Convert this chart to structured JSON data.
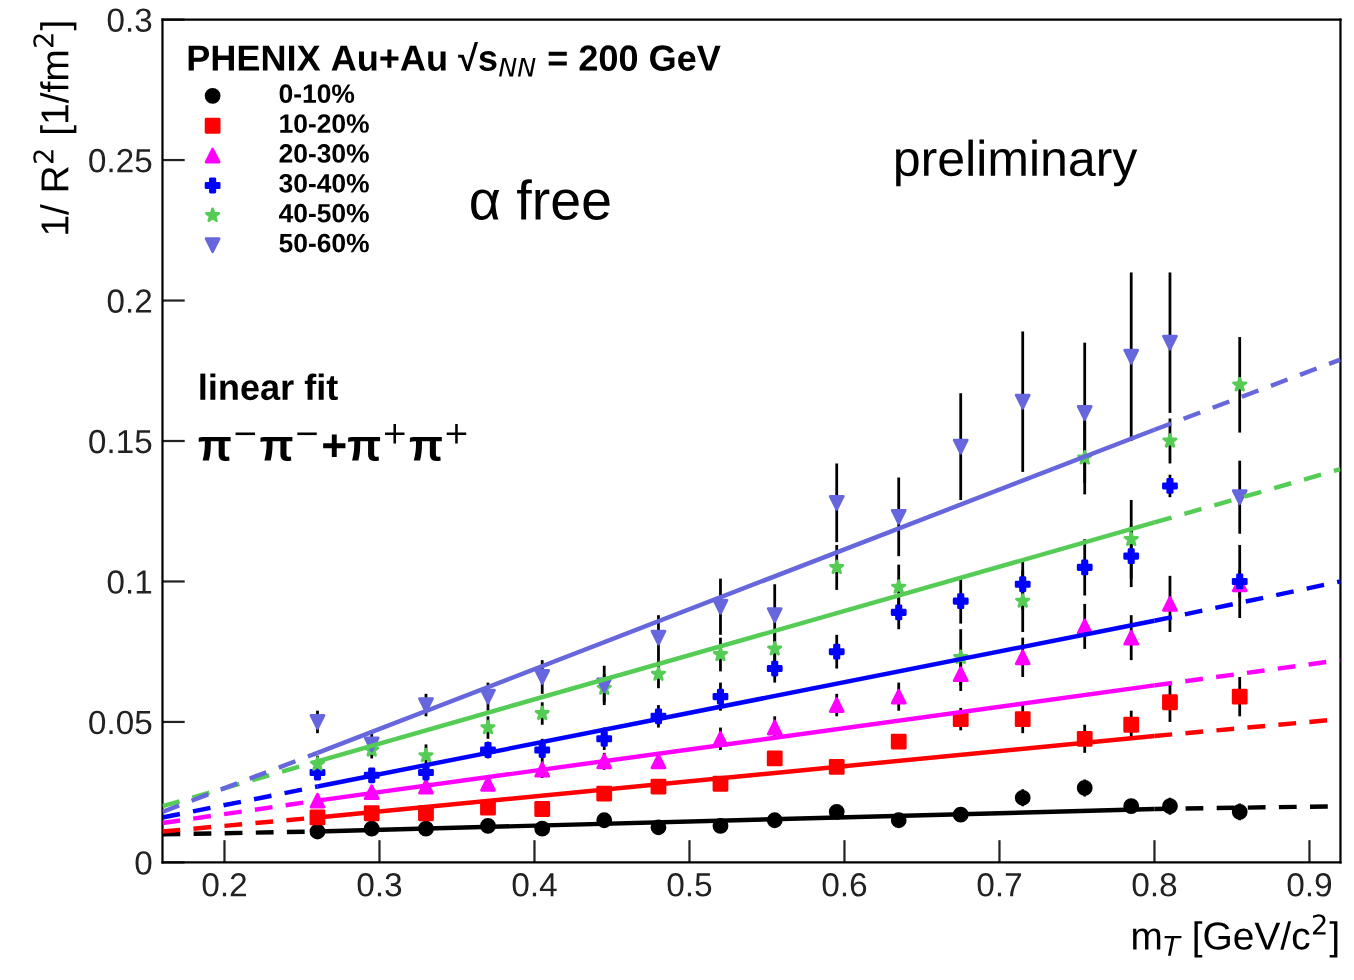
{
  "chart_data": {
    "type": "scatter",
    "legend_title": "PHENIX Au+Au √s$_{NN}$ = 200 GeV",
    "xlabel": "m$_{T}$ [GeV/c$^{2}$]",
    "ylabel": "1/ R$^{2}$ [1/fm$^{2}$]",
    "xlim": [
      0.16,
      0.92
    ],
    "xticks": [
      0.2,
      0.3,
      0.4,
      0.5,
      0.6,
      0.7,
      0.8,
      0.9
    ],
    "ylim": [
      0,
      0.3
    ],
    "yticks": [
      0,
      0.05,
      0.1,
      0.15,
      0.2,
      0.25,
      0.3
    ],
    "x": [
      0.26,
      0.295,
      0.33,
      0.37,
      0.405,
      0.445,
      0.48,
      0.52,
      0.555,
      0.595,
      0.635,
      0.675,
      0.715,
      0.755,
      0.785,
      0.81,
      0.855
    ],
    "legend": "top left",
    "grid": false,
    "annotations": [
      "linear fit",
      "π$^{−}$π$^{−}$+π$^{+}$π$^{+}$",
      "α free",
      "preliminary"
    ],
    "series": [
      {
        "name": "0-10%",
        "color": "#000000",
        "marker": "circle",
        "values": [
          0.011,
          0.012,
          0.012,
          0.013,
          0.012,
          0.015,
          0.0125,
          0.013,
          0.015,
          0.018,
          0.015,
          0.017,
          0.023,
          0.0265,
          0.02,
          0.02,
          0.018
        ],
        "errors": [
          null,
          null,
          null,
          null,
          null,
          null,
          null,
          null,
          null,
          null,
          null,
          null,
          0.003,
          0.003,
          0.002,
          0.003,
          0.003
        ]
      },
      {
        "name": "10-20%",
        "color": "#ff0000",
        "marker": "square",
        "values": [
          0.016,
          0.0175,
          0.0175,
          0.0195,
          0.019,
          0.0245,
          0.027,
          0.028,
          0.037,
          0.034,
          0.043,
          0.051,
          0.051,
          0.044,
          0.049,
          0.057,
          0.059
        ],
        "errors": [
          null,
          null,
          null,
          null,
          null,
          null,
          null,
          null,
          null,
          null,
          null,
          0.004,
          0.005,
          0.005,
          0.005,
          0.007,
          0.007
        ]
      },
      {
        "name": "20-30%",
        "color": "#ff00ff",
        "marker": "triangle",
        "values": [
          0.022,
          0.025,
          0.027,
          0.028,
          0.033,
          0.036,
          0.036,
          0.044,
          0.048,
          0.056,
          0.059,
          0.067,
          0.073,
          0.084,
          0.08,
          0.092,
          0.099
        ],
        "errors": [
          null,
          null,
          null,
          null,
          0.003,
          0.003,
          null,
          0.004,
          0.004,
          0.004,
          0.005,
          0.006,
          0.007,
          0.008,
          0.008,
          0.01,
          0.005
        ]
      },
      {
        "name": "30-40%",
        "color": "#0000ff",
        "marker": "cross",
        "values": [
          0.032,
          0.031,
          0.032,
          0.04,
          0.04,
          0.044,
          0.052,
          0.059,
          0.069,
          0.075,
          0.089,
          0.093,
          0.099,
          0.105,
          0.109,
          0.134,
          0.1
        ],
        "errors": [
          null,
          null,
          0.003,
          0.003,
          0.004,
          0.004,
          0.004,
          0.005,
          0.005,
          0.006,
          0.006,
          0.008,
          0.009,
          0.01,
          0.011,
          0.004,
          0.013
        ]
      },
      {
        "name": "40-50%",
        "color": "#55cc55",
        "marker": "star",
        "values": [
          0.035,
          0.04,
          0.038,
          0.048,
          0.053,
          0.062,
          0.067,
          0.074,
          0.076,
          0.105,
          0.098,
          0.073,
          0.093,
          0.144,
          0.115,
          0.15,
          0.17
        ],
        "errors": [
          0.003,
          0.003,
          0.004,
          0.004,
          0.004,
          0.005,
          0.005,
          0.006,
          0.006,
          0.008,
          0.008,
          0.01,
          0.011,
          0.013,
          0.014,
          0.008,
          0.017
        ]
      },
      {
        "name": "50-60%",
        "color": "#6666dd",
        "marker": "triangle_down",
        "values": [
          0.05,
          0.042,
          0.056,
          0.059,
          0.066,
          0.063,
          0.08,
          0.091,
          0.088,
          0.128,
          0.123,
          0.148,
          0.164,
          0.16,
          0.18,
          0.185,
          0.13
        ],
        "errors": [
          0.004,
          0.004,
          0.004,
          0.005,
          0.006,
          0.007,
          0.008,
          0.01,
          0.011,
          0.014,
          0.014,
          0.019,
          0.025,
          0.025,
          0.03,
          0.025,
          0.013
        ]
      },
      {
        "type": "line",
        "line_style": [
          "dashed",
          "solid",
          "dashed"
        ],
        "color": "#000000",
        "x": [
          0.16,
          0.26,
          0.8,
          0.92
        ],
        "values": [
          0.01,
          0.011,
          0.019,
          0.02
        ]
      },
      {
        "type": "line",
        "line_style": [
          "dashed",
          "solid",
          "dashed"
        ],
        "color": "#ff0000",
        "x": [
          0.16,
          0.26,
          0.8,
          0.92
        ],
        "values": [
          0.011,
          0.016,
          0.045,
          0.051
        ]
      },
      {
        "type": "line",
        "line_style": [
          "dashed",
          "solid",
          "dashed"
        ],
        "color": "#ff00ff",
        "x": [
          0.16,
          0.26,
          0.8,
          0.92
        ],
        "values": [
          0.014,
          0.022,
          0.063,
          0.072
        ]
      },
      {
        "type": "line",
        "line_style": [
          "dashed",
          "solid",
          "dashed"
        ],
        "color": "#0000ff",
        "x": [
          0.16,
          0.26,
          0.8,
          0.92
        ],
        "values": [
          0.016,
          0.027,
          0.086,
          0.1
        ]
      },
      {
        "type": "line",
        "line_style": [
          "dashed",
          "solid",
          "dashed"
        ],
        "color": "#55cc55",
        "x": [
          0.16,
          0.26,
          0.8,
          0.92
        ],
        "values": [
          0.02,
          0.036,
          0.121,
          0.14
        ]
      },
      {
        "type": "line",
        "line_style": [
          "dashed",
          "solid",
          "dashed"
        ],
        "color": "#6666dd",
        "x": [
          0.16,
          0.26,
          0.8,
          0.92
        ],
        "values": [
          0.018,
          0.039,
          0.154,
          0.179
        ]
      }
    ]
  }
}
